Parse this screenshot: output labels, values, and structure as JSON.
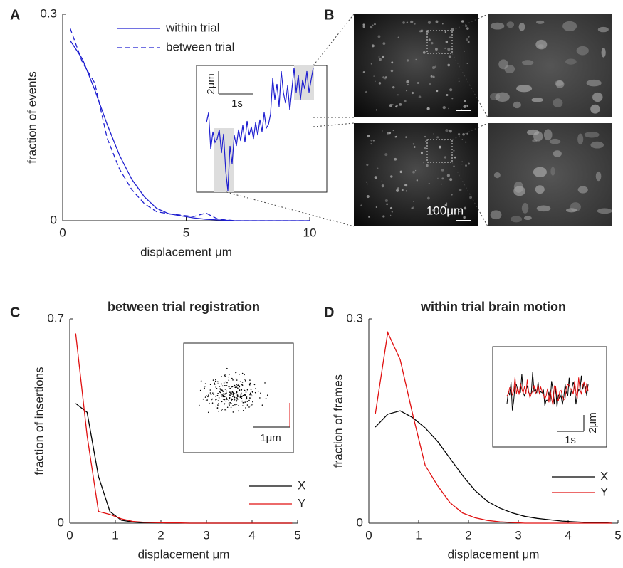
{
  "chart_data": [
    {
      "type": "line",
      "panel": "A",
      "xlabel": "displacement μm",
      "ylabel": "fraction of events",
      "x": [
        0.3,
        0.8,
        1.3,
        1.8,
        2.3,
        2.8,
        3.3,
        3.8,
        4.3,
        4.8,
        5.3,
        5.8,
        6.3,
        7,
        8,
        9,
        10
      ],
      "series": [
        {
          "name": "within trial",
          "color": "#1f1fd0",
          "dash": false,
          "values": [
            0.262,
            0.235,
            0.19,
            0.14,
            0.095,
            0.06,
            0.035,
            0.018,
            0.01,
            0.007,
            0.004,
            0.002,
            0.001,
            0,
            0,
            0,
            0
          ]
        },
        {
          "name": "between trial",
          "color": "#1f1fd0",
          "dash": true,
          "values": [
            0.28,
            0.23,
            0.2,
            0.12,
            0.075,
            0.045,
            0.025,
            0.013,
            0.01,
            0.008,
            0.006,
            0.011,
            0.002,
            0,
            0,
            0,
            0
          ]
        }
      ],
      "xlim": [
        0,
        10
      ],
      "xticks": [
        0,
        5,
        10
      ],
      "ylim": [
        0,
        0.3
      ],
      "yticks": [
        0,
        0.3
      ],
      "legend": "upper center",
      "inset_labels": [
        "2μm",
        "1s"
      ]
    },
    {
      "type": "line",
      "panel": "C",
      "title": "between trial registration",
      "xlabel": "displacement μm",
      "ylabel": "fraction of insertions",
      "x": [
        0.13,
        0.38,
        0.63,
        0.88,
        1.13,
        1.38,
        1.63,
        1.88,
        2.13,
        2.38,
        2.63,
        2.88,
        3.13,
        3.38,
        3.63,
        3.88,
        4.13,
        4.38,
        4.63,
        4.88
      ],
      "series": [
        {
          "name": "X",
          "color": "#000000",
          "dash": false,
          "values": [
            0.41,
            0.38,
            0.16,
            0.04,
            0.01,
            0.004,
            0.002,
            0.001,
            0,
            0,
            0,
            0,
            0,
            0,
            0,
            0,
            0,
            0,
            0,
            0
          ]
        },
        {
          "name": "Y",
          "color": "#e01010",
          "dash": false,
          "values": [
            0.65,
            0.3,
            0.04,
            0.03,
            0.015,
            0.006,
            0.003,
            0.002,
            0.001,
            0.001,
            0,
            0,
            0,
            0,
            0,
            0,
            0,
            0,
            0,
            0
          ]
        }
      ],
      "xlim": [
        0,
        5
      ],
      "xticks": [
        0,
        1,
        2,
        3,
        4,
        5
      ],
      "ylim": [
        0,
        0.7
      ],
      "yticks": [
        0,
        0.7
      ],
      "legend": "lower right",
      "inset_labels": [
        "1μm"
      ]
    },
    {
      "type": "line",
      "panel": "D",
      "title": "within trial brain motion",
      "xlabel": "displacement μm",
      "ylabel": "fraction of frames",
      "x": [
        0.13,
        0.38,
        0.63,
        0.88,
        1.13,
        1.38,
        1.63,
        1.88,
        2.13,
        2.38,
        2.63,
        2.88,
        3.13,
        3.38,
        3.63,
        3.88,
        4.13,
        4.38,
        4.63,
        4.88
      ],
      "series": [
        {
          "name": "X",
          "color": "#000000",
          "dash": false,
          "values": [
            0.141,
            0.16,
            0.165,
            0.155,
            0.14,
            0.12,
            0.095,
            0.07,
            0.048,
            0.032,
            0.022,
            0.015,
            0.01,
            0.007,
            0.005,
            0.003,
            0.002,
            0.001,
            0.001,
            0
          ]
        },
        {
          "name": "Y",
          "color": "#e01010",
          "dash": false,
          "values": [
            0.16,
            0.28,
            0.24,
            0.16,
            0.085,
            0.055,
            0.03,
            0.015,
            0.008,
            0.004,
            0.002,
            0.001,
            0,
            0,
            0,
            0,
            0,
            0,
            0,
            0
          ]
        }
      ],
      "xlim": [
        0,
        5
      ],
      "xticks": [
        0,
        1,
        2,
        3,
        4,
        5
      ],
      "ylim": [
        0,
        0.3
      ],
      "yticks": [
        0,
        0.3
      ],
      "legend": "lower right",
      "inset_labels": [
        "2μm",
        "1s"
      ]
    }
  ],
  "images": {
    "panel": "B",
    "scale_label": "100μm"
  }
}
